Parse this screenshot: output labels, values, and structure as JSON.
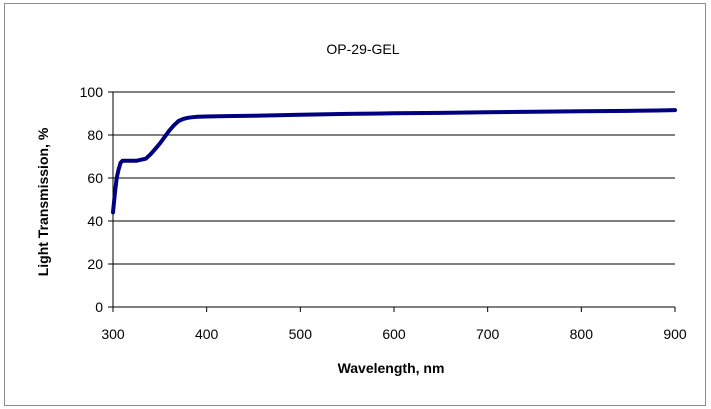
{
  "chart_data": {
    "type": "line",
    "title": "OP-29-GEL",
    "xlabel": "Wavelength, nm",
    "ylabel": "Light Transmission, %",
    "xlim": [
      300,
      900
    ],
    "ylim": [
      0,
      100
    ],
    "xticks": [
      300,
      400,
      500,
      600,
      700,
      800,
      900
    ],
    "yticks": [
      0,
      20,
      40,
      60,
      80,
      100
    ],
    "grid": "horizontal",
    "legend": "none",
    "series": [
      {
        "color": "#000080",
        "x": [
          300,
          302,
          304,
          306,
          308,
          310,
          315,
          320,
          325,
          330,
          335,
          340,
          345,
          350,
          355,
          360,
          365,
          370,
          375,
          380,
          385,
          390,
          400,
          420,
          450,
          500,
          550,
          600,
          650,
          700,
          750,
          800,
          850,
          880,
          900
        ],
        "y": [
          44,
          53,
          60,
          64,
          67,
          68,
          68,
          68,
          68,
          68.5,
          69,
          71,
          73.5,
          76,
          79,
          82,
          84.5,
          86.5,
          87.5,
          88,
          88.3,
          88.5,
          88.6,
          88.8,
          89,
          89.4,
          89.8,
          90.1,
          90.3,
          90.6,
          90.8,
          91,
          91.2,
          91.4,
          91.6
        ]
      }
    ]
  }
}
